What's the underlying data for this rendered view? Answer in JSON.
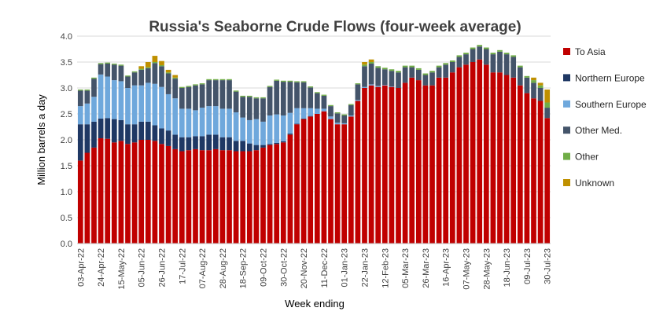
{
  "chart_data": {
    "type": "bar",
    "stacked": true,
    "title": "Russia's Seaborne Crude Flows (four-week average)",
    "xlabel": "Week ending",
    "ylabel": "Million barrels a day",
    "ylim": [
      0,
      4.0
    ],
    "yticks": [
      "0.0",
      "0.5",
      "1.0",
      "1.5",
      "2.0",
      "2.5",
      "3.0",
      "3.5",
      "4.0"
    ],
    "grid": true,
    "legend_position": "right",
    "categories": [
      "03-Apr-22",
      "10-Apr-22",
      "17-Apr-22",
      "24-Apr-22",
      "01-May-22",
      "08-May-22",
      "15-May-22",
      "22-May-22",
      "29-May-22",
      "05-Jun-22",
      "12-Jun-22",
      "19-Jun-22",
      "26-Jun-22",
      "03-Jul-22",
      "10-Jul-22",
      "17-Jul-22",
      "24-Jul-22",
      "31-Jul-22",
      "07-Aug-22",
      "14-Aug-22",
      "21-Aug-22",
      "28-Aug-22",
      "04-Sep-22",
      "11-Sep-22",
      "18-Sep-22",
      "25-Sep-22",
      "02-Oct-22",
      "09-Oct-22",
      "16-Oct-22",
      "23-Oct-22",
      "30-Oct-22",
      "06-Nov-22",
      "13-Nov-22",
      "20-Nov-22",
      "27-Nov-22",
      "04-Dec-22",
      "11-Dec-22",
      "18-Dec-22",
      "25-Dec-22",
      "01-Jan-23",
      "08-Jan-23",
      "15-Jan-23",
      "22-Jan-23",
      "29-Jan-23",
      "05-Feb-23",
      "12-Feb-23",
      "19-Feb-23",
      "26-Feb-23",
      "05-Mar-23",
      "12-Mar-23",
      "19-Mar-23",
      "26-Mar-23",
      "02-Apr-23",
      "09-Apr-23",
      "16-Apr-23",
      "23-Apr-23",
      "30-Apr-23",
      "07-May-23",
      "14-May-23",
      "21-May-23",
      "28-May-23",
      "04-Jun-23",
      "11-Jun-23",
      "18-Jun-23",
      "25-Jun-23",
      "02-Jul-23",
      "09-Jul-23",
      "16-Jul-23",
      "23-Jul-23",
      "30-Jul-23"
    ],
    "tick_labels": [
      "03-Apr-22",
      "24-Apr-22",
      "15-May-22",
      "05-Jun-22",
      "26-Jun-22",
      "17-Jul-22",
      "07-Aug-22",
      "28-Aug-22",
      "18-Sep-22",
      "09-Oct-22",
      "30-Oct-22",
      "20-Nov-22",
      "11-Dec-22",
      "01-Jan-23",
      "22-Jan-23",
      "12-Feb-23",
      "05-Mar-23",
      "26-Mar-23",
      "16-Apr-23",
      "07-May-23",
      "28-May-23",
      "18-Jun-23",
      "09-Jul-23",
      "30-Jul-23"
    ],
    "series": [
      {
        "name": "To Asia",
        "color": "#c00000",
        "values": [
          1.6,
          1.75,
          1.85,
          2.03,
          2.02,
          1.95,
          1.98,
          1.92,
          1.95,
          2.0,
          2.0,
          1.98,
          1.92,
          1.88,
          1.82,
          1.78,
          1.8,
          1.82,
          1.8,
          1.8,
          1.82,
          1.8,
          1.8,
          1.78,
          1.78,
          1.78,
          1.8,
          1.85,
          1.9,
          1.92,
          1.95,
          2.1,
          2.3,
          2.4,
          2.45,
          2.5,
          2.55,
          2.4,
          2.3,
          2.3,
          2.45,
          2.75,
          3.0,
          3.05,
          3.02,
          3.05,
          3.02,
          3.0,
          3.1,
          3.2,
          3.15,
          3.05,
          3.05,
          3.2,
          3.2,
          3.3,
          3.4,
          3.45,
          3.5,
          3.55,
          3.45,
          3.3,
          3.3,
          3.25,
          3.2,
          3.05,
          2.9,
          2.8,
          2.75,
          2.42
        ]
      },
      {
        "name": "Northern Europe",
        "color": "#1f3864",
        "values": [
          0.7,
          0.55,
          0.5,
          0.38,
          0.4,
          0.45,
          0.4,
          0.38,
          0.35,
          0.35,
          0.35,
          0.3,
          0.3,
          0.3,
          0.28,
          0.27,
          0.25,
          0.25,
          0.27,
          0.3,
          0.28,
          0.25,
          0.25,
          0.2,
          0.2,
          0.15,
          0.1,
          0.05,
          0.02,
          0.02,
          0.02,
          0.02,
          0.01,
          0.01,
          0.01,
          0,
          0,
          0,
          0,
          0,
          0,
          0,
          0,
          0,
          0,
          0,
          0,
          0,
          0,
          0,
          0,
          0,
          0,
          0,
          0,
          0,
          0,
          0,
          0,
          0,
          0,
          0,
          0,
          0,
          0,
          0,
          0,
          0,
          0,
          0
        ]
      },
      {
        "name": "Southern Europe",
        "color": "#6fa8dc",
        "values": [
          0.35,
          0.4,
          0.48,
          0.85,
          0.8,
          0.75,
          0.75,
          0.7,
          0.75,
          0.7,
          0.75,
          0.8,
          0.8,
          0.7,
          0.7,
          0.55,
          0.55,
          0.5,
          0.55,
          0.55,
          0.55,
          0.55,
          0.55,
          0.55,
          0.45,
          0.45,
          0.5,
          0.45,
          0.55,
          0.55,
          0.5,
          0.4,
          0.3,
          0.2,
          0.15,
          0.1,
          0.05,
          0.05,
          0.03,
          0.02,
          0.02,
          0.02,
          0.02,
          0.02,
          0.02,
          0.01,
          0.01,
          0,
          0,
          0,
          0,
          0,
          0,
          0,
          0,
          0,
          0,
          0,
          0,
          0,
          0,
          0,
          0,
          0,
          0,
          0,
          0,
          0,
          0,
          0
        ]
      },
      {
        "name": "Other Med.",
        "color": "#44546a",
        "values": [
          0.3,
          0.25,
          0.35,
          0.2,
          0.25,
          0.3,
          0.3,
          0.22,
          0.25,
          0.3,
          0.28,
          0.4,
          0.4,
          0.4,
          0.38,
          0.4,
          0.42,
          0.48,
          0.45,
          0.5,
          0.5,
          0.55,
          0.55,
          0.4,
          0.4,
          0.45,
          0.4,
          0.45,
          0.55,
          0.65,
          0.65,
          0.6,
          0.5,
          0.5,
          0.4,
          0.3,
          0.25,
          0.2,
          0.18,
          0.15,
          0.2,
          0.3,
          0.4,
          0.4,
          0.35,
          0.3,
          0.3,
          0.3,
          0.3,
          0.2,
          0.2,
          0.2,
          0.25,
          0.2,
          0.25,
          0.2,
          0.2,
          0.2,
          0.25,
          0.25,
          0.3,
          0.35,
          0.4,
          0.4,
          0.4,
          0.35,
          0.3,
          0.3,
          0.25,
          0.2
        ]
      },
      {
        "name": "Other",
        "color": "#70ad47",
        "values": [
          0.02,
          0.02,
          0.02,
          0.02,
          0.02,
          0.02,
          0.02,
          0.02,
          0.02,
          0.02,
          0.02,
          0.02,
          0.02,
          0.02,
          0.02,
          0.02,
          0.02,
          0.02,
          0.02,
          0.02,
          0.02,
          0.02,
          0.02,
          0.02,
          0.02,
          0.02,
          0.02,
          0.02,
          0.02,
          0.02,
          0.02,
          0.02,
          0.02,
          0.02,
          0.02,
          0.02,
          0.02,
          0.02,
          0.02,
          0.02,
          0.02,
          0.02,
          0.03,
          0.03,
          0.03,
          0.03,
          0.03,
          0.03,
          0.03,
          0.03,
          0.03,
          0.03,
          0.03,
          0.03,
          0.03,
          0.03,
          0.03,
          0.03,
          0.03,
          0.03,
          0.03,
          0.03,
          0.03,
          0.03,
          0.03,
          0.03,
          0.03,
          0.05,
          0.05,
          0.1
        ]
      },
      {
        "name": "Unknown",
        "color": "#bf9000",
        "values": [
          0,
          0,
          0,
          0,
          0,
          0,
          0,
          0,
          0,
          0.05,
          0.1,
          0.12,
          0.08,
          0.05,
          0.05,
          0,
          0,
          0,
          0,
          0,
          0,
          0,
          0,
          0,
          0,
          0,
          0,
          0,
          0,
          0,
          0,
          0,
          0,
          0,
          0,
          0,
          0,
          0,
          0,
          0,
          0,
          0,
          0.05,
          0.05,
          0,
          0,
          0,
          0,
          0,
          0,
          0,
          0,
          0,
          0,
          0,
          0,
          0,
          0,
          0,
          0,
          0,
          0,
          0,
          0,
          0,
          0,
          0,
          0.05,
          0.05,
          0.25
        ]
      }
    ]
  }
}
